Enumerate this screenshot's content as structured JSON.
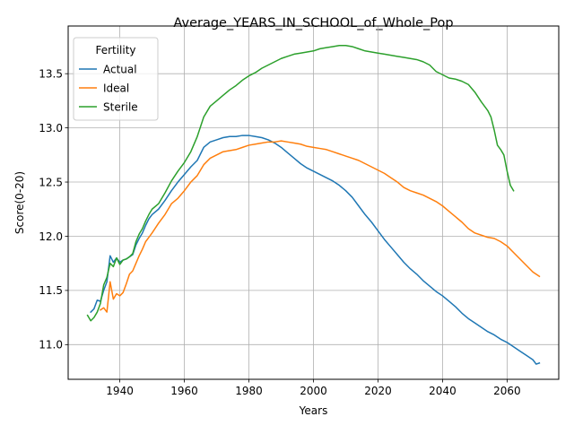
{
  "chart_data": {
    "type": "line",
    "title": "Average_YEARS_IN_SCHOOL_of_Whole_Pop",
    "xlabel": "Years",
    "ylabel": "Score(0-20)",
    "xlim": [
      1924,
      2076
    ],
    "ylim": [
      10.68,
      13.94
    ],
    "xticks": [
      1940,
      1960,
      1980,
      2000,
      2020,
      2040,
      2060
    ],
    "yticks": [
      11.0,
      11.5,
      12.0,
      12.5,
      13.0,
      13.5
    ],
    "grid": true,
    "legend": {
      "title": "Fertility",
      "position": "upper left"
    },
    "series": [
      {
        "name": "Actual",
        "color": "#1f77b4",
        "x": [
          1931,
          1932,
          1933,
          1934,
          1935,
          1936,
          1937,
          1938,
          1939,
          1940,
          1941,
          1942,
          1943,
          1944,
          1945,
          1946,
          1947,
          1948,
          1949,
          1950,
          1952,
          1954,
          1956,
          1958,
          1960,
          1962,
          1964,
          1966,
          1968,
          1970,
          1972,
          1974,
          1976,
          1978,
          1980,
          1982,
          1984,
          1986,
          1988,
          1990,
          1992,
          1994,
          1996,
          1998,
          2000,
          2002,
          2004,
          2006,
          2008,
          2010,
          2012,
          2014,
          2016,
          2018,
          2020,
          2022,
          2024,
          2026,
          2028,
          2030,
          2032,
          2034,
          2036,
          2038,
          2040,
          2042,
          2044,
          2046,
          2048,
          2050,
          2052,
          2054,
          2056,
          2058,
          2060,
          2062,
          2064,
          2066,
          2068,
          2069,
          2070
        ],
        "y": [
          11.3,
          11.33,
          11.41,
          11.4,
          11.5,
          11.58,
          11.82,
          11.76,
          11.8,
          11.76,
          11.78,
          11.79,
          11.81,
          11.83,
          11.92,
          11.98,
          12.03,
          12.1,
          12.16,
          12.2,
          12.25,
          12.33,
          12.42,
          12.5,
          12.57,
          12.64,
          12.7,
          12.82,
          12.87,
          12.89,
          12.91,
          12.92,
          12.92,
          12.93,
          12.93,
          12.92,
          12.91,
          12.89,
          12.86,
          12.82,
          12.77,
          12.72,
          12.67,
          12.63,
          12.6,
          12.57,
          12.54,
          12.51,
          12.47,
          12.42,
          12.36,
          12.28,
          12.2,
          12.13,
          12.05,
          11.97,
          11.9,
          11.83,
          11.76,
          11.7,
          11.65,
          11.59,
          11.54,
          11.49,
          11.45,
          11.4,
          11.35,
          11.29,
          11.24,
          11.2,
          11.16,
          11.12,
          11.09,
          11.05,
          11.02,
          10.98,
          10.94,
          10.9,
          10.86,
          10.82,
          10.83
        ]
      },
      {
        "name": "Ideal",
        "color": "#ff7f0e",
        "x": [
          1934,
          1935,
          1936,
          1937,
          1938,
          1939,
          1940,
          1941,
          1942,
          1943,
          1944,
          1945,
          1946,
          1947,
          1948,
          1949,
          1950,
          1952,
          1954,
          1956,
          1958,
          1960,
          1962,
          1964,
          1966,
          1968,
          1970,
          1972,
          1974,
          1976,
          1978,
          1980,
          1982,
          1984,
          1986,
          1988,
          1990,
          1992,
          1994,
          1996,
          1998,
          2000,
          2002,
          2004,
          2006,
          2008,
          2010,
          2012,
          2014,
          2016,
          2018,
          2020,
          2022,
          2024,
          2026,
          2028,
          2030,
          2032,
          2034,
          2036,
          2038,
          2040,
          2042,
          2044,
          2046,
          2048,
          2050,
          2052,
          2054,
          2056,
          2058,
          2060,
          2062,
          2064,
          2066,
          2068,
          2070
        ],
        "y": [
          11.32,
          11.34,
          11.3,
          11.58,
          11.42,
          11.47,
          11.45,
          11.48,
          11.56,
          11.65,
          11.68,
          11.75,
          11.82,
          11.88,
          11.95,
          11.99,
          12.03,
          12.12,
          12.2,
          12.3,
          12.35,
          12.42,
          12.5,
          12.56,
          12.66,
          12.72,
          12.75,
          12.78,
          12.79,
          12.8,
          12.82,
          12.84,
          12.85,
          12.86,
          12.87,
          12.87,
          12.88,
          12.87,
          12.86,
          12.85,
          12.83,
          12.82,
          12.81,
          12.8,
          12.78,
          12.76,
          12.74,
          12.72,
          12.7,
          12.67,
          12.64,
          12.61,
          12.58,
          12.54,
          12.5,
          12.45,
          12.42,
          12.4,
          12.38,
          12.35,
          12.32,
          12.28,
          12.23,
          12.18,
          12.13,
          12.07,
          12.03,
          12.01,
          11.99,
          11.98,
          11.95,
          11.91,
          11.85,
          11.79,
          11.73,
          11.67,
          11.63
        ]
      },
      {
        "name": "Sterile",
        "color": "#2ca02c",
        "x": [
          1930,
          1931,
          1932,
          1933,
          1934,
          1935,
          1936,
          1937,
          1938,
          1939,
          1940,
          1941,
          1942,
          1943,
          1944,
          1945,
          1946,
          1947,
          1948,
          1949,
          1950,
          1952,
          1954,
          1956,
          1958,
          1960,
          1962,
          1964,
          1966,
          1968,
          1970,
          1972,
          1974,
          1976,
          1978,
          1980,
          1982,
          1984,
          1986,
          1988,
          1990,
          1992,
          1994,
          1996,
          1998,
          2000,
          2002,
          2004,
          2006,
          2008,
          2010,
          2012,
          2014,
          2016,
          2018,
          2020,
          2022,
          2024,
          2026,
          2028,
          2030,
          2032,
          2034,
          2036,
          2038,
          2040,
          2042,
          2044,
          2046,
          2048,
          2050,
          2052,
          2054,
          2055,
          2056,
          2057,
          2058,
          2059,
          2060,
          2061,
          2062
        ],
        "y": [
          11.27,
          11.22,
          11.25,
          11.3,
          11.38,
          11.55,
          11.62,
          11.75,
          11.72,
          11.8,
          11.74,
          11.78,
          11.79,
          11.81,
          11.84,
          11.95,
          12.02,
          12.07,
          12.14,
          12.2,
          12.25,
          12.3,
          12.4,
          12.51,
          12.6,
          12.68,
          12.78,
          12.92,
          13.1,
          13.2,
          13.25,
          13.3,
          13.35,
          13.39,
          13.44,
          13.48,
          13.51,
          13.55,
          13.58,
          13.61,
          13.64,
          13.66,
          13.68,
          13.69,
          13.7,
          13.71,
          13.73,
          13.74,
          13.75,
          13.76,
          13.76,
          13.75,
          13.73,
          13.71,
          13.7,
          13.69,
          13.68,
          13.67,
          13.66,
          13.65,
          13.64,
          13.63,
          13.61,
          13.58,
          13.52,
          13.49,
          13.46,
          13.45,
          13.43,
          13.4,
          13.33,
          13.24,
          13.16,
          13.1,
          12.98,
          12.84,
          12.8,
          12.75,
          12.6,
          12.47,
          12.42
        ]
      }
    ]
  }
}
